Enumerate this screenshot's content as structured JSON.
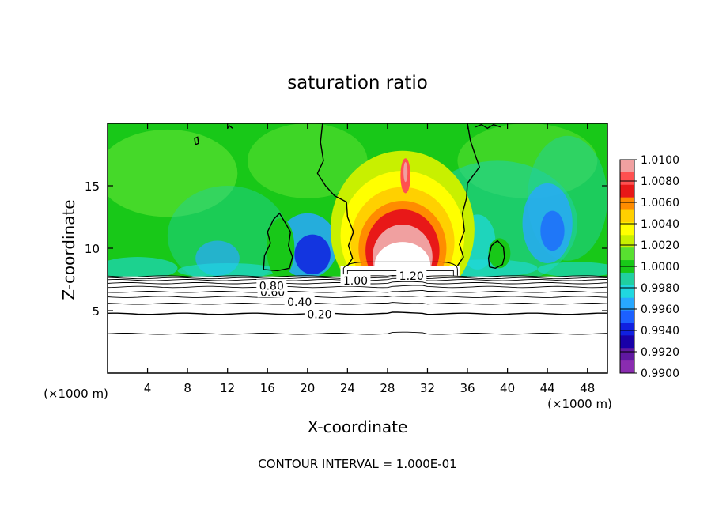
{
  "chart_data": {
    "type": "heatmap",
    "title": "saturation ratio",
    "xlabel": "X-coordinate",
    "ylabel": "Z-coordinate",
    "x_unit_left": "(×1000 m)",
    "x_unit_right": "(×1000 m)",
    "footer": "CONTOUR INTERVAL = 1.000E-01",
    "xlim": [
      0,
      50
    ],
    "ylim": [
      0,
      20
    ],
    "x_ticks": [
      4,
      8,
      12,
      16,
      20,
      24,
      28,
      32,
      36,
      40,
      44,
      48
    ],
    "y_ticks": [
      5,
      10,
      15
    ],
    "colorbar": {
      "min": 0.99,
      "max": 1.01,
      "labels": [
        "1.0100",
        "1.0080",
        "1.0060",
        "1.0040",
        "1.0020",
        "1.0000",
        "0.9980",
        "0.9960",
        "0.9940",
        "0.9920",
        "0.9900"
      ],
      "colors": [
        "#f0a0a0",
        "#ff5050",
        "#e81818",
        "#ff8c00",
        "#ffd000",
        "#ffff00",
        "#c8f000",
        "#58e030",
        "#18c818",
        "#20d0a0",
        "#20d8e0",
        "#28a8ff",
        "#1c60ff",
        "#1020e0",
        "#1800a8",
        "#6018a0",
        "#8a2cb0"
      ]
    },
    "contour_labels": [
      {
        "text": "0.20",
        "x": 21.2,
        "z": 4.7
      },
      {
        "text": "0.40",
        "x": 19.2,
        "z": 5.7
      },
      {
        "text": "0.60",
        "x": 16.5,
        "z": 6.5
      },
      {
        "text": "0.80",
        "x": 16.4,
        "z": 7.0
      },
      {
        "text": "1.00",
        "x": 24.8,
        "z": 7.4
      },
      {
        "text": "1.20",
        "x": 30.4,
        "z": 7.8
      }
    ],
    "contour_levels_z": [
      3.15,
      4.75,
      5.55,
      6.1,
      6.5,
      6.9,
      7.2,
      7.45,
      7.6,
      7.75
    ]
  }
}
